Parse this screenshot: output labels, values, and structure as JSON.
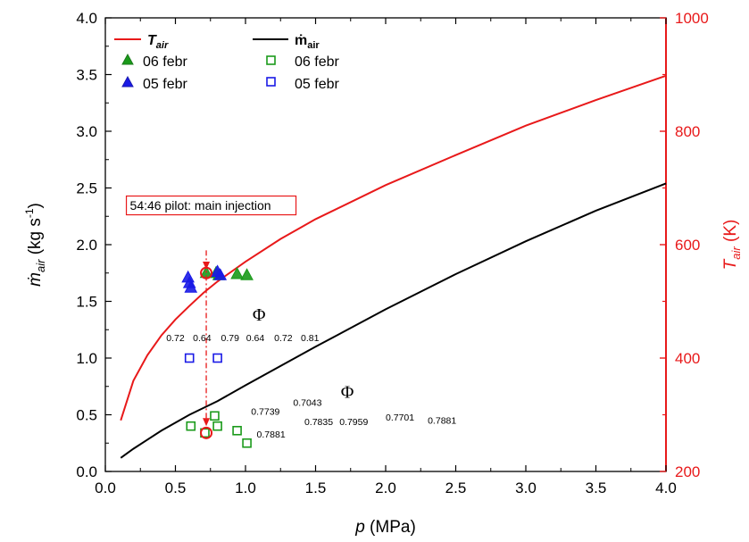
{
  "chart_data": {
    "type": "scatter",
    "x_axis": {
      "label_symbol": "p",
      "label_unit": " (MPa)",
      "range": [
        0,
        4.0
      ],
      "ticks": [
        "0.0",
        "0.5",
        "1.0",
        "1.5",
        "2.0",
        "2.5",
        "3.0",
        "3.5",
        "4.0"
      ]
    },
    "y_axis_left": {
      "label_symbol": "ṁ",
      "label_sub": "air",
      "label_unit": " (kg s",
      "label_sup": "-1",
      "label_close": ")",
      "range": [
        0,
        4.0
      ],
      "ticks": [
        "0.0",
        "0.5",
        "1.0",
        "1.5",
        "2.0",
        "2.5",
        "3.0",
        "3.5",
        "4.0"
      ]
    },
    "y_axis_right": {
      "label_symbol": "T",
      "label_sub": "air",
      "label_unit": " (K)",
      "range": [
        200,
        1000
      ],
      "ticks": [
        "200",
        "400",
        "600",
        "800",
        "1000"
      ],
      "color": "#e8191a"
    },
    "legend": {
      "col1_title": "T",
      "col1_title_sub": "air",
      "col1_items": [
        "06 febr",
        "05 febr"
      ],
      "col2_title": "ṁ",
      "col2_title_sub": "air",
      "col2_items": [
        "06 febr",
        "05 febr"
      ]
    },
    "series": [
      {
        "name": "T_air",
        "kind": "line",
        "axis": "right",
        "color": "#e8191a",
        "x": [
          0.11,
          0.2,
          0.3,
          0.4,
          0.5,
          0.6,
          0.7,
          0.8,
          1.0,
          1.25,
          1.5,
          2.0,
          2.5,
          3.0,
          3.5,
          4.0
        ],
        "y": [
          290,
          360,
          405,
          440,
          468,
          492,
          515,
          535,
          570,
          610,
          645,
          705,
          758,
          810,
          855,
          898
        ]
      },
      {
        "name": "ṁ_air",
        "kind": "line",
        "axis": "left",
        "color": "#000000",
        "x": [
          0.11,
          0.2,
          0.3,
          0.4,
          0.5,
          0.6,
          0.7,
          0.8,
          1.0,
          1.5,
          2.0,
          2.5,
          3.0,
          3.5,
          4.0
        ],
        "y": [
          0.12,
          0.2,
          0.28,
          0.36,
          0.43,
          0.5,
          0.56,
          0.62,
          0.76,
          1.1,
          1.43,
          1.74,
          2.03,
          2.3,
          2.54
        ]
      },
      {
        "name": "06 febr",
        "kind": "triangle",
        "axis": "left",
        "color": "#1a9a1a",
        "fill": true,
        "x": [
          0.72,
          0.79,
          0.81,
          0.94,
          1.01
        ],
        "y": [
          1.75,
          1.75,
          1.73,
          1.74,
          1.73
        ]
      },
      {
        "name": "05 febr",
        "kind": "triangle",
        "axis": "left",
        "color": "#1a1ae6",
        "fill": true,
        "x": [
          0.59,
          0.6,
          0.61,
          0.8,
          0.82
        ],
        "y": [
          1.71,
          1.66,
          1.62,
          1.76,
          1.73
        ]
      },
      {
        "name": "06 febr",
        "kind": "square",
        "axis": "left",
        "color": "#1a9a1a",
        "fill": false,
        "x": [
          0.61,
          0.71,
          0.78,
          0.8,
          0.94,
          1.01
        ],
        "y": [
          0.4,
          0.34,
          0.49,
          0.4,
          0.36,
          0.25
        ]
      },
      {
        "name": "05 febr",
        "kind": "square",
        "axis": "left",
        "color": "#1a1ae6",
        "fill": false,
        "x": [
          0.6,
          0.8
        ],
        "y": [
          1.0,
          1.0
        ]
      }
    ],
    "highlights": [
      {
        "x": 0.72,
        "y": 1.75
      },
      {
        "x": 0.72,
        "y": 0.34
      }
    ],
    "arrow": {
      "x": 0.72,
      "y_from": 1.95,
      "y_to": 0.4
    },
    "annotation_box": {
      "text": "54:46 pilot: main injection",
      "x": 0.15,
      "y": 2.35
    },
    "phi_labels": [
      {
        "text": "Φ",
        "x": 1.05,
        "y": 1.33
      },
      {
        "text": "Φ",
        "x": 1.68,
        "y": 0.65
      }
    ],
    "phi_values_upper": [
      {
        "text": "0.72",
        "x": 0.5,
        "y": 1.15
      },
      {
        "text": "0.64",
        "x": 0.69,
        "y": 1.15
      },
      {
        "text": "0.79",
        "x": 0.89,
        "y": 1.15
      },
      {
        "text": "0.64",
        "x": 1.07,
        "y": 1.15
      },
      {
        "text": "0.72",
        "x": 1.27,
        "y": 1.15
      },
      {
        "text": "0.81",
        "x": 1.46,
        "y": 1.15
      }
    ],
    "phi_values_lower": [
      {
        "text": "0.7739",
        "x": 1.04,
        "y": 0.5
      },
      {
        "text": "0.7043",
        "x": 1.34,
        "y": 0.58
      },
      {
        "text": "0.7881",
        "x": 1.08,
        "y": 0.3
      },
      {
        "text": "0.7835",
        "x": 1.42,
        "y": 0.41
      },
      {
        "text": "0.7959",
        "x": 1.67,
        "y": 0.41
      },
      {
        "text": "0.7701",
        "x": 2.0,
        "y": 0.45
      },
      {
        "text": "0.7881",
        "x": 2.3,
        "y": 0.42
      }
    ]
  }
}
